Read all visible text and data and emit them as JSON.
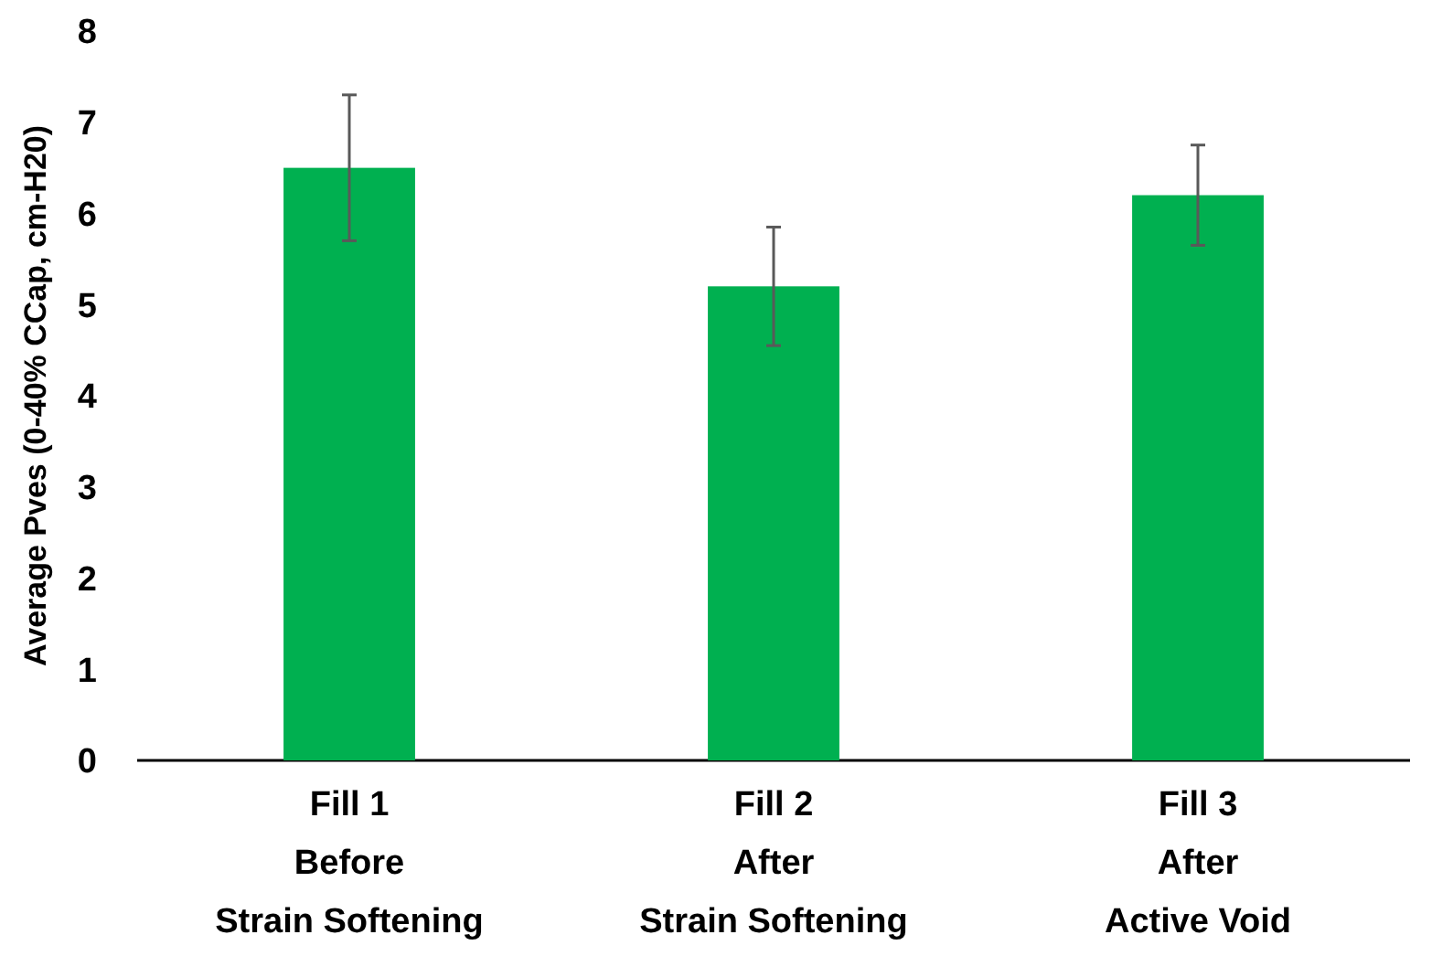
{
  "chart_data": {
    "type": "bar",
    "ylabel": "Average Pves (0-40% CCap, cm-H20)",
    "categories": [
      "Fill 1\nBefore\nStrain Softening",
      "Fill 2\nAfter\nStrain Softening",
      "Fill 3\nAfter\nActive Void"
    ],
    "values": [
      6.5,
      5.2,
      6.2
    ],
    "errors": [
      0.8,
      0.65,
      0.55
    ],
    "color": "#00b050",
    "ylim": [
      0,
      8
    ],
    "yticks": [
      0,
      1,
      2,
      3,
      4,
      5,
      6,
      7,
      8
    ],
    "grid": false
  }
}
